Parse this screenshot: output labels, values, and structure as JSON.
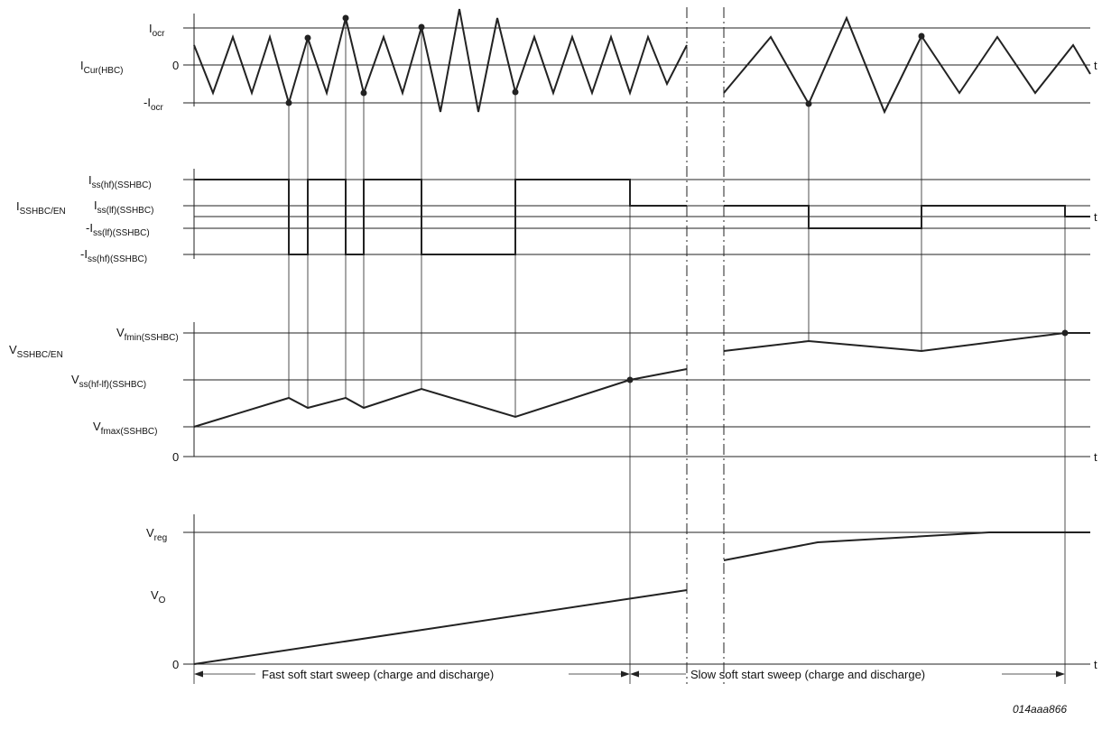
{
  "panels": {
    "current": {
      "signal_main": "I",
      "signal_sub": "Cur(HBC)",
      "levels": [
        {
          "id": "iocr",
          "main": "I",
          "sub": "ocr"
        },
        {
          "id": "zero",
          "main": "0",
          "sub": ""
        },
        {
          "id": "miocr",
          "main": "-I",
          "sub": "ocr"
        }
      ],
      "time_label": "t"
    },
    "ss_current": {
      "signal_main": "I",
      "signal_sub": "SSHBC/EN",
      "levels": [
        {
          "id": "iss_hf",
          "main": "I",
          "sub": "ss(hf)(SSHBC)"
        },
        {
          "id": "iss_lf",
          "main": "I",
          "sub": "ss(lf)(SSHBC)"
        },
        {
          "id": "miss_lf",
          "main": "-I",
          "sub": "ss(lf)(SSHBC)"
        },
        {
          "id": "miss_hf",
          "main": "-I",
          "sub": "ss(hf)(SSHBC)"
        }
      ],
      "time_label": "t"
    },
    "ss_voltage": {
      "signal_main": "V",
      "signal_sub": "SSHBC/EN",
      "levels": [
        {
          "id": "vfmin",
          "main": "V",
          "sub": "fmin(SSHBC)"
        },
        {
          "id": "vss",
          "main": "V",
          "sub": "ss(hf-lf)(SSHBC)"
        },
        {
          "id": "vfmax",
          "main": "V",
          "sub": "fmax(SSHBC)"
        },
        {
          "id": "zero",
          "main": "0",
          "sub": ""
        }
      ],
      "time_label": "t"
    },
    "output": {
      "levels": [
        {
          "id": "vreg",
          "main": "V",
          "sub": "reg"
        },
        {
          "id": "vo",
          "main": "V",
          "sub": "O"
        },
        {
          "id": "zero",
          "main": "0",
          "sub": ""
        }
      ],
      "time_label": "t"
    }
  },
  "sweeps": {
    "fast": "Fast soft start sweep (charge and discharge)",
    "slow": "Slow soft start sweep (charge and discharge)"
  },
  "figure_code": "014aaa866"
}
